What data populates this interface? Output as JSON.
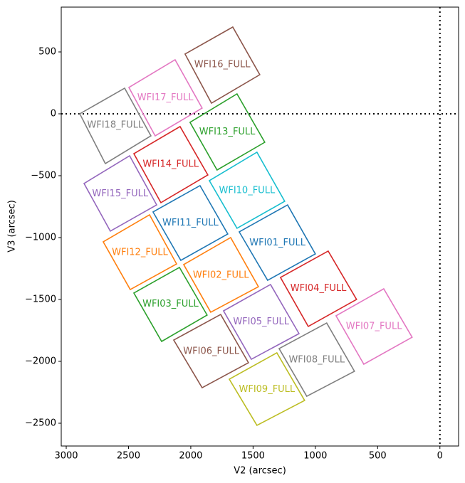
{
  "chart_data": {
    "type": "polygon",
    "x_label": "V2 (arcsec)",
    "y_label": "V3 (arcsec)",
    "xlim": [
      3040,
      -150
    ],
    "ylim": [
      -2684,
      862
    ],
    "xticks": [
      3000,
      2500,
      2000,
      1500,
      1000,
      500,
      0
    ],
    "yticks": [
      {
        "value": -2500,
        "label": "−2500"
      },
      {
        "value": -2000,
        "label": "−2000"
      },
      {
        "value": -1500,
        "label": "−1500"
      },
      {
        "value": -1000,
        "label": "−1000"
      },
      {
        "value": -500,
        "label": "−500"
      },
      0,
      500
    ],
    "reference_x": 0,
    "reference_y": 0,
    "series": [
      {
        "name": "WFI01_FULL",
        "color": "#1f77b4",
        "x": [
          1611,
          1223,
          1000,
          1383
        ],
        "y": [
          -954,
          -736,
          -1132,
          -1345
        ]
      },
      {
        "name": "WFI02_FULL",
        "color": "#ff7f0e",
        "x": [
          2057,
          1680,
          1457,
          1840
        ],
        "y": [
          -1218,
          -1000,
          -1397,
          -1603
        ]
      },
      {
        "name": "WFI03_FULL",
        "color": "#2ca02c",
        "x": [
          2457,
          2091,
          1869,
          2234
        ],
        "y": [
          -1448,
          -1241,
          -1626,
          -1839
        ]
      },
      {
        "name": "WFI04_FULL",
        "color": "#d62728",
        "x": [
          1280,
          897,
          669,
          1057
        ],
        "y": [
          -1322,
          -1109,
          -1500,
          -1718
        ]
      },
      {
        "name": "WFI05_FULL",
        "color": "#9467bd",
        "x": [
          1737,
          1360,
          1131,
          1514
        ],
        "y": [
          -1592,
          -1379,
          -1776,
          -1983
        ]
      },
      {
        "name": "WFI06_FULL",
        "color": "#8c564b",
        "x": [
          2137,
          1760,
          1537,
          1909
        ],
        "y": [
          -1828,
          -1621,
          -2011,
          -2213
        ]
      },
      {
        "name": "WFI07_FULL",
        "color": "#e377c2",
        "x": [
          834,
          451,
          223,
          611
        ],
        "y": [
          -1632,
          -1414,
          -1805,
          -2023
        ]
      },
      {
        "name": "WFI08_FULL",
        "color": "#7f7f7f",
        "x": [
          1291,
          909,
          686,
          1069
        ],
        "y": [
          -1897,
          -1690,
          -2080,
          -2282
        ]
      },
      {
        "name": "WFI09_FULL",
        "color": "#bcbd22",
        "x": [
          1691,
          1309,
          1086,
          1469
        ],
        "y": [
          -2144,
          -1931,
          -2316,
          -2517
        ]
      },
      {
        "name": "WFI10_FULL",
        "color": "#17becf",
        "x": [
          1851,
          1469,
          1246,
          1629
        ],
        "y": [
          -540,
          -310,
          -707,
          -925
        ]
      },
      {
        "name": "WFI11_FULL",
        "color": "#1f77b4",
        "x": [
          2303,
          1926,
          1703,
          2080
        ],
        "y": [
          -793,
          -580,
          -971,
          -1184
        ]
      },
      {
        "name": "WFI12_FULL",
        "color": "#ff7f0e",
        "x": [
          2703,
          2331,
          2114,
          2486
        ],
        "y": [
          -1034,
          -816,
          -1213,
          -1420
        ]
      },
      {
        "name": "WFI13_FULL",
        "color": "#2ca02c",
        "x": [
          2006,
          1629,
          1406,
          1789
        ],
        "y": [
          -69,
          161,
          -230,
          -454
        ]
      },
      {
        "name": "WFI14_FULL",
        "color": "#d62728",
        "x": [
          2457,
          2086,
          1863,
          2240
        ],
        "y": [
          -322,
          -103,
          -494,
          -718
        ]
      },
      {
        "name": "WFI15_FULL",
        "color": "#9467bd",
        "x": [
          2857,
          2491,
          2274,
          2646
        ],
        "y": [
          -563,
          -339,
          -736,
          -948
        ]
      },
      {
        "name": "WFI16_FULL",
        "color": "#8c564b",
        "x": [
          2046,
          1663,
          1446,
          1834
        ],
        "y": [
          483,
          701,
          316,
          86
        ]
      },
      {
        "name": "WFI17_FULL",
        "color": "#e377c2",
        "x": [
          2497,
          2126,
          1909,
          2286
        ],
        "y": [
          213,
          437,
          46,
          -178
        ]
      },
      {
        "name": "WFI18_FULL",
        "color": "#7f7f7f",
        "x": [
          2891,
          2531,
          2320,
          2686
        ],
        "y": [
          0,
          207,
          -178,
          -402
        ]
      }
    ]
  }
}
